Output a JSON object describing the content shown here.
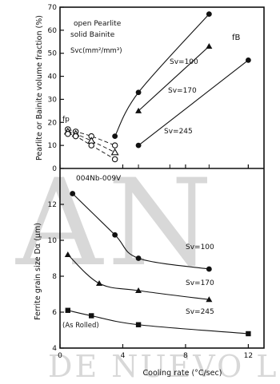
{
  "watermark": {
    "big": "AN",
    "small": "DE NUEVO L"
  },
  "top_panel": {
    "ylabel": "Pearlite or Bainite volume fraction (%)",
    "legend_line1": "open Pearlite",
    "legend_line2": "solid Bainite",
    "sv_unit": "Svc(mm²/mm³)",
    "tp_label": "fp",
    "fb_label": "fB",
    "composition": "004Nb-009V"
  },
  "bottom_panel": {
    "ylabel": "Ferrite grain size Dα (μm)",
    "as_rolled": "(As Rolled)",
    "xlabel": "Cooling rate (°C/sec)"
  },
  "chart_data": [
    {
      "type": "scatter",
      "id": "volume-fraction",
      "ylabel": "Pearlite or Bainite volume fraction (%)",
      "ylim": [
        0,
        70
      ],
      "xlim": [
        0,
        13
      ],
      "yticks": [
        0,
        10,
        20,
        30,
        40,
        50,
        60,
        70
      ],
      "xticks": [
        0,
        4,
        8,
        12
      ],
      "series": [
        {
          "name": "Sv=100",
          "marker": "circle",
          "x": [
            3.5,
            5,
            9.5
          ],
          "y": [
            14,
            33,
            67
          ]
        },
        {
          "name": "Sv=170",
          "marker": "triangle",
          "x": [
            5,
            9.5
          ],
          "y": [
            25,
            53
          ]
        },
        {
          "name": "Sv=245",
          "marker": "circle",
          "x": [
            5,
            12
          ],
          "y": [
            10,
            47
          ]
        },
        {
          "name": "fp Sv=100",
          "marker": "open-circle",
          "x": [
            0.5,
            1,
            2,
            3.5
          ],
          "y": [
            17,
            16,
            14,
            10
          ]
        },
        {
          "name": "fp Sv=170",
          "marker": "open-triangle",
          "x": [
            0.5,
            1,
            2,
            3.5
          ],
          "y": [
            16,
            15,
            12,
            7
          ]
        },
        {
          "name": "fp Sv=245",
          "marker": "open-circle",
          "x": [
            0.5,
            1,
            2,
            3.5
          ],
          "y": [
            15,
            14,
            10,
            4
          ]
        }
      ]
    },
    {
      "type": "line",
      "id": "grain-size",
      "ylabel": "Ferrite grain size Dα (μm)",
      "xlabel": "Cooling rate (°C/sec)",
      "ylim": [
        4,
        14
      ],
      "xlim": [
        0,
        13
      ],
      "yticks": [
        4,
        6,
        8,
        10,
        12
      ],
      "xticks": [
        0,
        4,
        8,
        12
      ],
      "series": [
        {
          "name": "Sv=100",
          "marker": "circle",
          "x": [
            0.8,
            3.5,
            5,
            9.5
          ],
          "y": [
            12.6,
            10.3,
            9.0,
            8.4
          ]
        },
        {
          "name": "Sv=170",
          "marker": "triangle",
          "x": [
            0.5,
            2.5,
            5,
            9.5
          ],
          "y": [
            9.2,
            7.6,
            7.2,
            6.7
          ]
        },
        {
          "name": "Sv=245",
          "marker": "square",
          "x": [
            0.5,
            2,
            5,
            12
          ],
          "y": [
            6.1,
            5.8,
            5.3,
            4.8
          ]
        }
      ]
    }
  ]
}
